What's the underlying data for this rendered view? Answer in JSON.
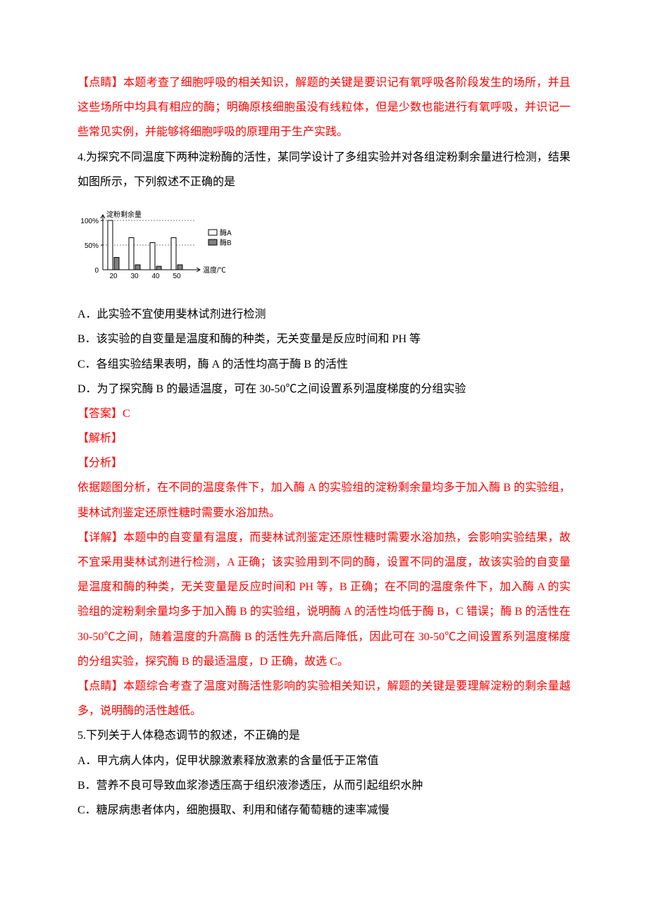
{
  "p1_red": "【点睛】本题考查了细胞呼吸的相关知识，解题的关键是要识记有氧呼吸各阶段发生的场所，并且这些场所中均具有相应的酶；明确原核细胞虽没有线粒体，但是少数也能进行有氧呼吸，并识记一些常见实例，并能够将细胞呼吸的原理用于生产实践。",
  "q4_stem": "4.为探究不同温度下两种淀粉酶的活性，某同学设计了多组实验并对各组淀粉剩余量进行检测，结果如图所示，下列叙述不正确的是",
  "q4_A": "A．此实验不宜使用斐林试剂进行检测",
  "q4_B": "B．该实验的自变量是温度和酶的种类，无关变量是反应时间和 PH 等",
  "q4_C": "C．各组实验结果表明，酶 A 的活性均高于酶 B 的活性",
  "q4_D": "D．为了探究酶 B 的最适温度，可在 30-50℃之间设置系列温度梯度的分组实验",
  "ans_label": "【答案】C",
  "jiexi_label": "【解析】",
  "fenxi_label": "【分析】",
  "q4_fenxi": "依据题图分析，在不同的温度条件下，加入酶 A 的实验组的淀粉剩余量均多于加入酶 B 的实验组，斐林试剂鉴定还原性糖时需要水浴加热。",
  "q4_xiangjie": "【详解】本题中的自变量有温度，而斐林试剂鉴定还原性糖时需要水浴加热，会影响实验结果，故不宜采用斐林试剂进行检测，A 正确；该实验用到不同的酶，设置不同的温度，故该实验的自变量是温度和酶的种类，无关变量是反应时间和 PH 等，B 正确；在不同的温度条件下，加入酶 A 的实验组的淀粉剩余量均多于加入酶 B 的实验组，说明酶 A 的活性均低于酶 B，C 错误；酶 B 的活性在 30-50℃之间，随着温度的升高酶 B 的活性先升高后降低，因此可在 30-50℃之间设置系列温度梯度的分组实验，探究酶 B 的最适温度，D 正确，故选 C。",
  "q4_dianjing": "【点睛】本题综合考查了温度对酶活性影响的实验相关知识，解题的关键是要理解淀粉的剩余量越多，说明酶的活性越低。",
  "q5_stem": "5.下列关于人体稳态调节的叙述，不正确的是",
  "q5_A": "A．甲亢病人体内，促甲状腺激素释放激素的含量低于正常值",
  "q5_B": "B．营养不良可导致血浆渗透压高于组织液渗透压，从而引起组织水肿",
  "q5_C": "C．糖尿病患者体内，细胞摄取、利用和储存葡萄糖的速率减慢",
  "chart": {
    "type": "grouped-bar",
    "y_label": "淀粉剩余量",
    "y_ticks": [
      0,
      50,
      100
    ],
    "y_tick_labels": [
      "0",
      "50%",
      "100%"
    ],
    "x_ticks": [
      20,
      30,
      40,
      50
    ],
    "x_label": "温度/℃",
    "legend": [
      {
        "label": "酶A",
        "fill": "#ffffff"
      },
      {
        "label": "酶B",
        "fill": "#808080"
      }
    ],
    "groups": [
      {
        "x": 20,
        "A": 100,
        "B": 25
      },
      {
        "x": 30,
        "A": 65,
        "B": 10
      },
      {
        "x": 40,
        "A": 55,
        "B": 7
      },
      {
        "x": 50,
        "A": 65,
        "B": 10
      }
    ],
    "axis_color": "#000000",
    "bar_stroke": "#000000",
    "barA_fill": "#ffffff",
    "barB_fill": "#808080",
    "font_size": 10
  }
}
